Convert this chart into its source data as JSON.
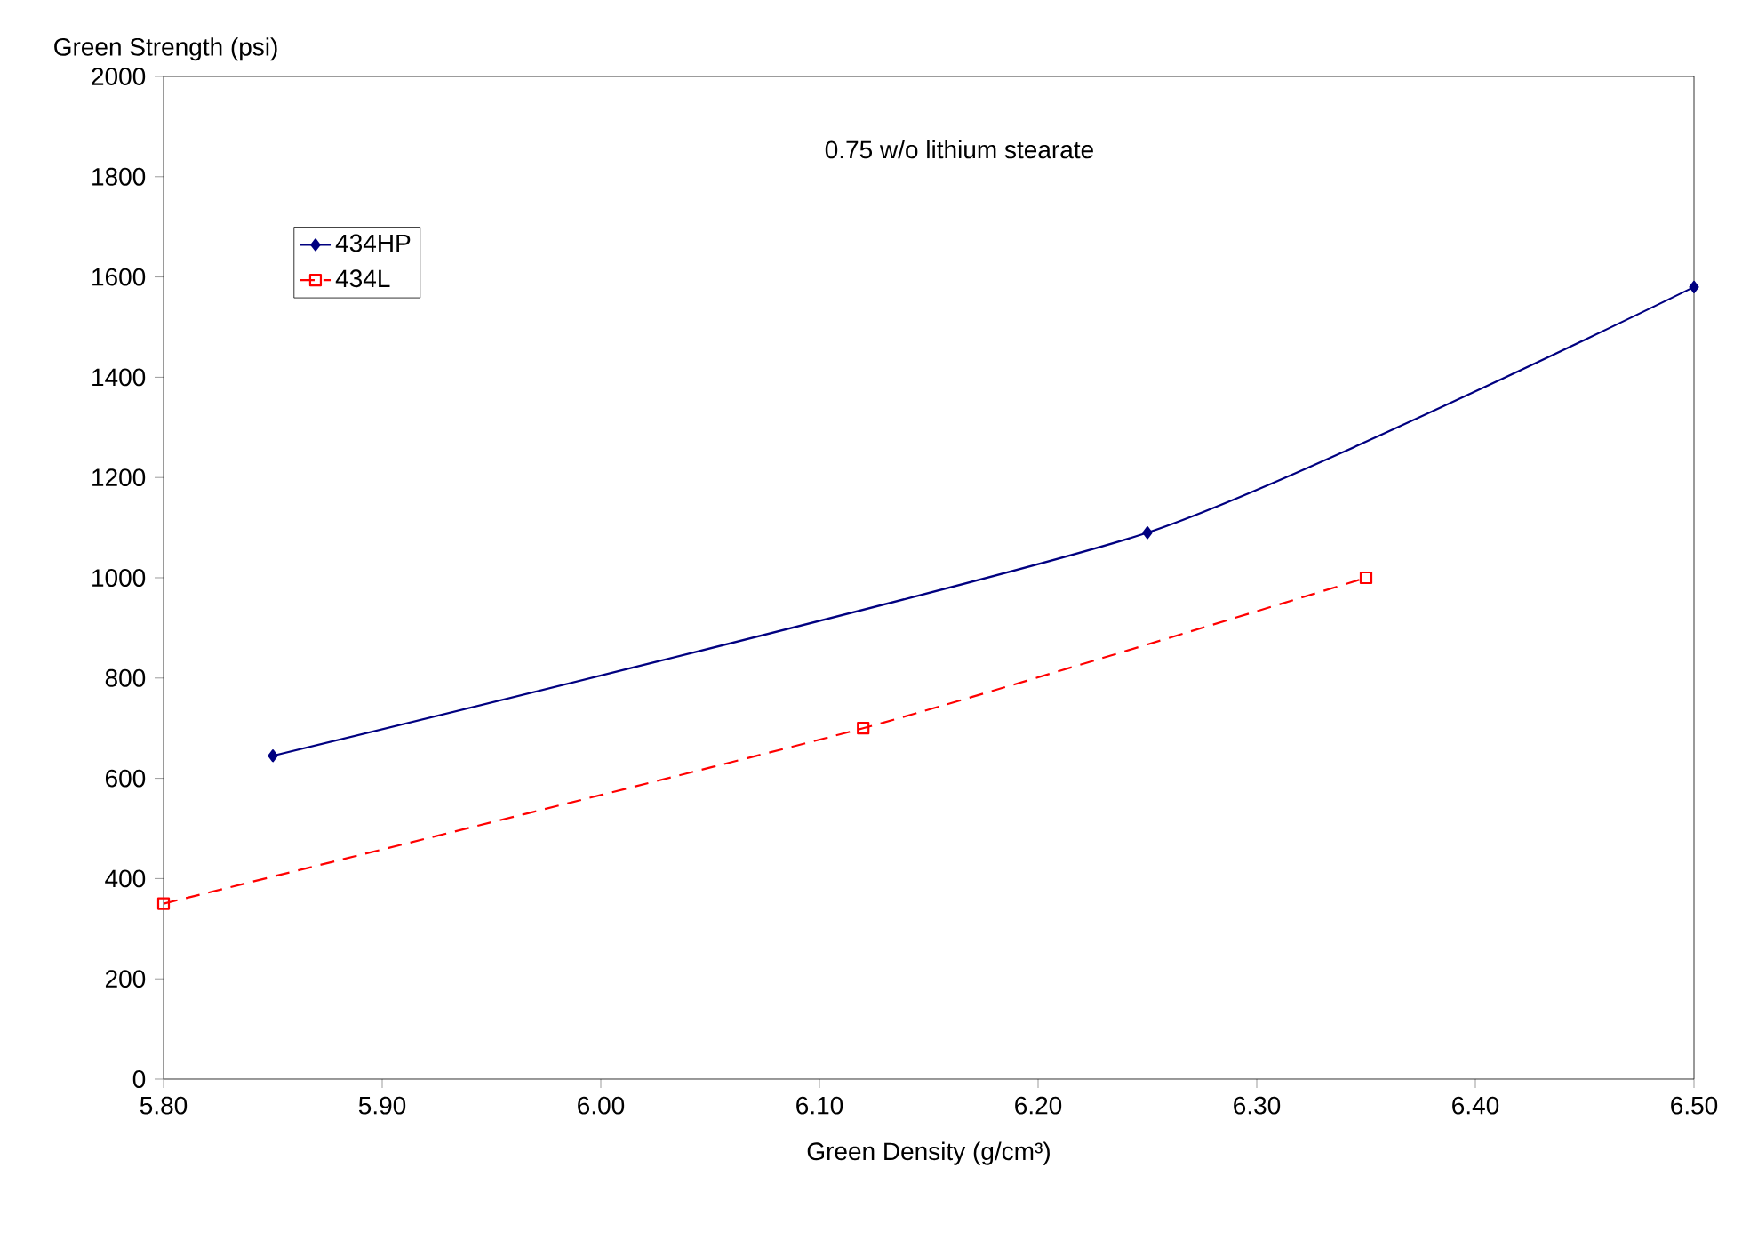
{
  "chart_data": {
    "type": "line",
    "xlabel": "Green Density  (g/cm³)",
    "ylabel": "Green Strength (psi)",
    "annotations": [
      "0.75 w/o lithium stearate"
    ],
    "series": [
      {
        "name": "434HP",
        "color": "#000080",
        "x": [
          5.85,
          6.25,
          6.5
        ],
        "values": [
          645,
          1090,
          1580
        ],
        "marker": "diamond",
        "line_style": "solid"
      },
      {
        "name": "434L",
        "color": "#ff0000",
        "x": [
          5.8,
          6.12,
          6.35
        ],
        "values": [
          350,
          700,
          1000
        ],
        "marker": "square",
        "line_style": "dashed"
      }
    ],
    "xlim": [
      5.8,
      6.5
    ],
    "xticks": [
      {
        "value": 5.8,
        "label": "5.80"
      },
      {
        "value": 5.9,
        "label": "5.90"
      },
      {
        "value": 6.0,
        "label": "6.00"
      },
      {
        "value": 6.1,
        "label": "6.10"
      },
      {
        "value": 6.2,
        "label": "6.20"
      },
      {
        "value": 6.3,
        "label": "6.30"
      },
      {
        "value": 6.4,
        "label": "6.40"
      },
      {
        "value": 6.5,
        "label": "6.50"
      }
    ],
    "ylim": [
      0,
      2000
    ],
    "yticks": [
      0,
      200,
      400,
      600,
      800,
      1000,
      1200,
      1400,
      1600,
      1800,
      2000
    ],
    "grid": false,
    "legend": "top left"
  }
}
